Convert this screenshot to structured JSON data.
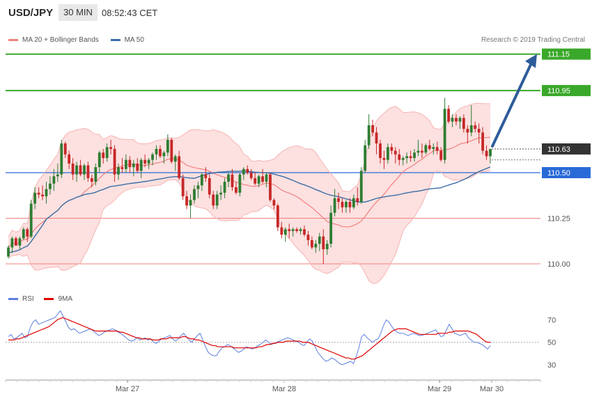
{
  "header": {
    "symbol": "USD/JPY",
    "timeframe": "30 MIN",
    "time": "08:52:43 CET"
  },
  "legend": {
    "bb_label": "MA 20 + Bollinger Bands",
    "ma50_label": "MA 50",
    "bb_color": "#f08080",
    "ma50_color": "#3a6ea5"
  },
  "copyright": "Research © 2019 Trading Central",
  "rsi_legend": {
    "rsi_label": "RSI",
    "ma_label": "9MA",
    "rsi_color": "#5b7fe0",
    "ma_color": "#e00000"
  },
  "chart_data": [
    {
      "type": "candlestick",
      "y_ticks": [
        "110.00",
        "110.25"
      ],
      "y_ticks_values": [
        110.0,
        110.25
      ],
      "ylim": [
        109.9,
        111.3
      ],
      "levels": [
        {
          "label": "111.15",
          "value": 111.15,
          "color": "#3aa82a"
        },
        {
          "label": "110.95",
          "value": 110.95,
          "color": "#3aa82a"
        },
        {
          "label": "110.63",
          "value": 110.63,
          "color": "#333333"
        },
        {
          "label": "110.50",
          "value": 110.5,
          "color": "#2a6ad8"
        }
      ],
      "x_labels": [
        "Mar 27",
        "Mar 28",
        "Mar 29",
        "Mar 30"
      ],
      "ohlc": [
        [
          110.04,
          110.1,
          110.03,
          110.09
        ],
        [
          110.09,
          110.15,
          110.06,
          110.14
        ],
        [
          110.14,
          110.15,
          110.1,
          110.1
        ],
        [
          110.1,
          110.15,
          110.08,
          110.14
        ],
        [
          110.14,
          110.2,
          110.13,
          110.19
        ],
        [
          110.19,
          110.2,
          110.12,
          110.15
        ],
        [
          110.15,
          110.35,
          110.14,
          110.33
        ],
        [
          110.33,
          110.42,
          110.3,
          110.39
        ],
        [
          110.39,
          110.42,
          110.36,
          110.38
        ],
        [
          110.38,
          110.43,
          110.35,
          110.37
        ],
        [
          110.37,
          110.45,
          110.33,
          110.41
        ],
        [
          110.41,
          110.48,
          110.38,
          110.44
        ],
        [
          110.44,
          110.52,
          110.4,
          110.48
        ],
        [
          110.48,
          110.55,
          110.45,
          110.49
        ],
        [
          110.49,
          110.68,
          110.47,
          110.66
        ],
        [
          110.66,
          110.67,
          110.58,
          110.6
        ],
        [
          110.6,
          110.62,
          110.52,
          110.55
        ],
        [
          110.55,
          110.58,
          110.46,
          110.49
        ],
        [
          110.49,
          110.56,
          110.45,
          110.54
        ],
        [
          110.54,
          110.57,
          110.48,
          110.49
        ],
        [
          110.49,
          110.55,
          110.46,
          110.54
        ],
        [
          110.54,
          110.56,
          110.45,
          110.47
        ],
        [
          110.47,
          110.49,
          110.42,
          110.45
        ],
        [
          110.45,
          110.55,
          110.43,
          110.53
        ],
        [
          110.53,
          110.62,
          110.5,
          110.61
        ],
        [
          110.61,
          110.63,
          110.55,
          110.58
        ],
        [
          110.58,
          110.66,
          110.56,
          110.64
        ],
        [
          110.64,
          110.68,
          110.6,
          110.63
        ],
        [
          110.63,
          110.65,
          110.45,
          110.49
        ],
        [
          110.49,
          110.55,
          110.46,
          110.53
        ],
        [
          110.53,
          110.58,
          110.5,
          110.52
        ],
        [
          110.52,
          110.6,
          110.5,
          110.57
        ],
        [
          110.57,
          110.59,
          110.5,
          110.53
        ],
        [
          110.53,
          110.57,
          110.48,
          110.55
        ],
        [
          110.55,
          110.58,
          110.5,
          110.51
        ],
        [
          110.51,
          110.58,
          110.47,
          110.57
        ],
        [
          110.57,
          110.6,
          110.53,
          110.55
        ],
        [
          110.55,
          110.58,
          110.52,
          110.57
        ],
        [
          110.57,
          110.61,
          110.54,
          110.6
        ],
        [
          110.6,
          110.65,
          110.57,
          110.63
        ],
        [
          110.63,
          110.65,
          110.58,
          110.59
        ],
        [
          110.59,
          110.62,
          110.55,
          110.61
        ],
        [
          110.61,
          110.71,
          110.59,
          110.68
        ],
        [
          110.68,
          110.69,
          110.55,
          110.56
        ],
        [
          110.56,
          110.6,
          110.51,
          110.59
        ],
        [
          110.59,
          110.62,
          110.46,
          110.47
        ],
        [
          110.47,
          110.49,
          110.35,
          110.37
        ],
        [
          110.37,
          110.4,
          110.3,
          110.32
        ],
        [
          110.32,
          110.38,
          110.25,
          110.35
        ],
        [
          110.35,
          110.43,
          110.33,
          110.41
        ],
        [
          110.41,
          110.45,
          110.36,
          110.43
        ],
        [
          110.43,
          110.5,
          110.4,
          110.49
        ],
        [
          110.49,
          110.53,
          110.45,
          110.47
        ],
        [
          110.47,
          110.49,
          110.36,
          110.38
        ],
        [
          110.38,
          110.4,
          110.3,
          110.32
        ],
        [
          110.32,
          110.4,
          110.3,
          110.38
        ],
        [
          110.38,
          110.43,
          110.35,
          110.39
        ],
        [
          110.39,
          110.47,
          110.36,
          110.45
        ],
        [
          110.45,
          110.5,
          110.42,
          110.49
        ],
        [
          110.49,
          110.52,
          110.4,
          110.42
        ],
        [
          110.42,
          110.45,
          110.38,
          110.39
        ],
        [
          110.39,
          110.5,
          110.37,
          110.49
        ],
        [
          110.49,
          110.53,
          110.46,
          110.52
        ],
        [
          110.52,
          110.54,
          110.49,
          110.5
        ],
        [
          110.5,
          110.52,
          110.46,
          110.47
        ],
        [
          110.47,
          110.5,
          110.43,
          110.44
        ],
        [
          110.44,
          110.49,
          110.42,
          110.48
        ],
        [
          110.48,
          110.52,
          110.44,
          110.45
        ],
        [
          110.45,
          110.5,
          110.42,
          110.49
        ],
        [
          110.49,
          110.5,
          110.34,
          110.35
        ],
        [
          110.35,
          110.36,
          110.3,
          110.32
        ],
        [
          110.32,
          110.33,
          110.18,
          110.2
        ],
        [
          110.2,
          110.23,
          110.14,
          110.16
        ],
        [
          110.16,
          110.2,
          110.12,
          110.19
        ],
        [
          110.19,
          110.22,
          110.14,
          110.18
        ],
        [
          110.18,
          110.2,
          110.15,
          110.19
        ],
        [
          110.19,
          110.2,
          110.17,
          110.18
        ],
        [
          110.18,
          110.2,
          110.16,
          110.19
        ],
        [
          110.19,
          110.21,
          110.15,
          110.16
        ],
        [
          110.16,
          110.18,
          110.1,
          110.13
        ],
        [
          110.13,
          110.15,
          110.08,
          110.09
        ],
        [
          110.09,
          110.13,
          110.06,
          110.11
        ],
        [
          110.11,
          110.17,
          110.07,
          110.15
        ],
        [
          110.15,
          110.19,
          110.0,
          110.08
        ],
        [
          110.08,
          110.13,
          110.05,
          110.11
        ],
        [
          110.11,
          110.32,
          110.09,
          110.28
        ],
        [
          110.28,
          110.41,
          110.26,
          110.36
        ],
        [
          110.36,
          110.39,
          110.3,
          110.34
        ],
        [
          110.34,
          110.36,
          110.28,
          110.31
        ],
        [
          110.31,
          110.35,
          110.28,
          110.34
        ],
        [
          110.34,
          110.36,
          110.28,
          110.31
        ],
        [
          110.31,
          110.38,
          110.3,
          110.36
        ],
        [
          110.36,
          110.42,
          110.32,
          110.34
        ],
        [
          110.34,
          110.53,
          110.33,
          110.51
        ],
        [
          110.51,
          110.68,
          110.5,
          110.65
        ],
        [
          110.65,
          110.82,
          110.63,
          110.76
        ],
        [
          110.76,
          110.79,
          110.7,
          110.72
        ],
        [
          110.72,
          110.75,
          110.6,
          110.66
        ],
        [
          110.66,
          110.68,
          110.55,
          110.58
        ],
        [
          110.58,
          110.62,
          110.52,
          110.57
        ],
        [
          110.57,
          110.66,
          110.55,
          110.64
        ],
        [
          110.64,
          110.66,
          110.6,
          110.62
        ],
        [
          110.62,
          110.64,
          110.55,
          110.6
        ],
        [
          110.6,
          110.63,
          110.54,
          110.57
        ],
        [
          110.57,
          110.59,
          110.54,
          110.58
        ],
        [
          110.58,
          110.61,
          110.55,
          110.59
        ],
        [
          110.59,
          110.62,
          110.56,
          110.58
        ],
        [
          110.58,
          110.63,
          110.56,
          110.61
        ],
        [
          110.61,
          110.68,
          110.59,
          110.62
        ],
        [
          110.62,
          110.66,
          110.58,
          110.61
        ],
        [
          110.61,
          110.66,
          110.6,
          110.65
        ],
        [
          110.65,
          110.68,
          110.62,
          110.63
        ],
        [
          110.63,
          110.66,
          110.6,
          110.64
        ],
        [
          110.64,
          110.67,
          110.6,
          110.62
        ],
        [
          110.62,
          110.64,
          110.56,
          110.57
        ],
        [
          110.57,
          110.91,
          110.55,
          110.85
        ],
        [
          110.85,
          110.87,
          110.77,
          110.78
        ],
        [
          110.78,
          110.82,
          110.75,
          110.8
        ],
        [
          110.8,
          110.82,
          110.76,
          110.78
        ],
        [
          110.78,
          110.81,
          110.74,
          110.8
        ],
        [
          110.8,
          110.82,
          110.72,
          110.74
        ],
        [
          110.74,
          110.76,
          110.66,
          110.72
        ],
        [
          110.72,
          110.87,
          110.7,
          110.76
        ],
        [
          110.76,
          110.78,
          110.72,
          110.74
        ],
        [
          110.74,
          110.77,
          110.66,
          110.72
        ],
        [
          110.72,
          110.75,
          110.6,
          110.62
        ],
        [
          110.62,
          110.65,
          110.57,
          110.59
        ],
        [
          110.59,
          110.63,
          110.55,
          110.63
        ]
      ],
      "sma50_start": 110.06,
      "target_value": 111.15
    },
    {
      "type": "line",
      "title": "RSI",
      "y_ticks": [
        "30",
        "50",
        "70"
      ],
      "y_ticks_values": [
        30,
        50,
        70
      ],
      "ylim": [
        20,
        82
      ],
      "series": [
        {
          "name": "RSI",
          "values": [
            55,
            57,
            53,
            54,
            56,
            58,
            54,
            55,
            63,
            68,
            70,
            66,
            67,
            68,
            69,
            70,
            71,
            72,
            75,
            78,
            73,
            68,
            63,
            61,
            62,
            60,
            58,
            59,
            60,
            61,
            62,
            60,
            58,
            56,
            57,
            59,
            60,
            61,
            62,
            61,
            59,
            58,
            56,
            54,
            52,
            51,
            52,
            54,
            52,
            53,
            54,
            52,
            53,
            50,
            49,
            51,
            53,
            54,
            55,
            56,
            53,
            51,
            53,
            56,
            58,
            55,
            52,
            50,
            53,
            56,
            58,
            52,
            46,
            41,
            39,
            38,
            38,
            42,
            45,
            46,
            48,
            47,
            45,
            43,
            41,
            42,
            44,
            46,
            45,
            44,
            45,
            47,
            48,
            50,
            52,
            50,
            48,
            49,
            50,
            51,
            52,
            53,
            54,
            53,
            52,
            51,
            50,
            48,
            47,
            50,
            53,
            51,
            46,
            41,
            38,
            35,
            33,
            34,
            36,
            35,
            33,
            31,
            30,
            31,
            32,
            33,
            31,
            37,
            45,
            55,
            57,
            54,
            52,
            50,
            52,
            53,
            58,
            65,
            70,
            68,
            64,
            61,
            59,
            58,
            58,
            57,
            56,
            57,
            58,
            57,
            56,
            56,
            57,
            58,
            59,
            60,
            61,
            58,
            55,
            56,
            61,
            66,
            62,
            58,
            57,
            56,
            57,
            58,
            54,
            52,
            50,
            50,
            49,
            48,
            46,
            44,
            47
          ]
        },
        {
          "name": "9MA",
          "values": [
            52,
            52,
            52,
            53,
            53,
            54,
            55,
            56,
            57,
            58,
            59,
            60,
            61,
            62,
            63,
            64,
            66,
            68,
            70,
            71,
            72,
            71,
            70,
            69,
            68,
            67,
            66,
            65,
            64,
            63,
            62,
            61,
            60,
            60,
            60,
            60,
            60,
            60,
            60,
            60,
            60,
            59,
            59,
            58,
            57,
            56,
            55,
            54,
            54,
            53,
            53,
            53,
            53,
            52,
            52,
            52,
            53,
            53,
            53,
            54,
            54,
            54,
            54,
            54,
            55,
            55,
            54,
            53,
            53,
            52,
            52,
            51,
            50,
            49,
            48,
            47,
            47,
            46,
            46,
            46,
            46,
            46,
            46,
            45,
            45,
            45,
            45,
            45,
            45,
            45,
            45,
            45,
            46,
            46,
            47,
            48,
            48,
            49,
            49,
            50,
            50,
            50,
            51,
            51,
            51,
            51,
            51,
            51,
            50,
            50,
            50,
            49,
            48,
            47,
            46,
            45,
            44,
            43,
            42,
            41,
            40,
            39,
            38,
            37,
            36,
            36,
            35,
            35,
            36,
            37,
            38,
            40,
            42,
            44,
            46,
            48,
            50,
            52,
            54,
            56,
            58,
            60,
            61,
            62,
            62,
            62,
            62,
            61,
            60,
            59,
            58,
            57,
            57,
            57,
            57,
            57,
            57,
            57,
            58,
            58,
            58,
            58,
            59,
            59,
            60,
            60,
            60,
            60,
            60,
            60,
            59,
            58,
            57,
            55,
            53,
            51,
            50,
            50
          ]
        }
      ],
      "ref_lines": [
        30,
        50,
        70
      ]
    }
  ]
}
